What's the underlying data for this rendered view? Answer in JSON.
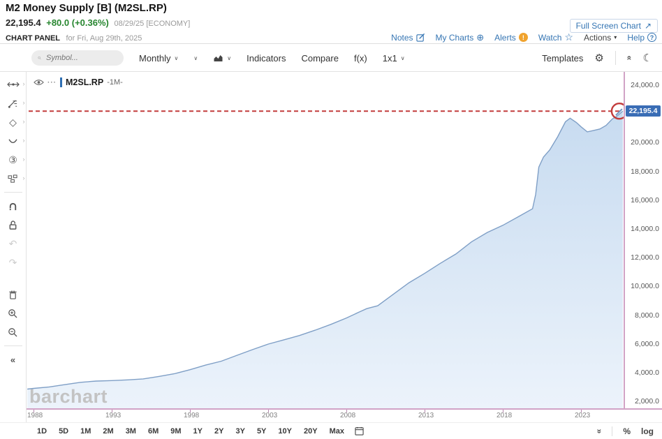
{
  "header": {
    "title": "M2 Money Supply [B] (M2SL.RP)",
    "last": "22,195.4",
    "change": "+80.0 (+0.36%)",
    "date_info": "08/29/25 [ECONOMY]",
    "fullscreen_label": "Full Screen Chart",
    "panel_label": "CHART PANEL",
    "panel_date": "for Fri, Aug 29th, 2025",
    "links": {
      "notes": "Notes",
      "my_charts": "My Charts",
      "alerts": "Alerts",
      "watch": "Watch",
      "actions": "Actions",
      "help": "Help"
    }
  },
  "toolbar": {
    "symbol_placeholder": "Symbol...",
    "period": "Monthly",
    "indicators": "Indicators",
    "compare": "Compare",
    "fx": "f(x)",
    "grid_layout": "1x1",
    "templates": "Templates"
  },
  "sidebar": {
    "tools": [
      "crosshair",
      "draw-annotations",
      "shapes",
      "curves",
      "waves",
      "patterns",
      "magnet",
      "lock",
      "undo",
      "redo",
      "delete",
      "zoom-in",
      "zoom-out",
      "collapse"
    ]
  },
  "legend": {
    "symbol": "M2SL.RP",
    "period": "-1M-"
  },
  "watermark": "barchart",
  "price_tag": "22,195.4",
  "bottom_bar": {
    "ranges": [
      "1D",
      "5D",
      "1M",
      "2M",
      "3M",
      "6M",
      "9M",
      "1Y",
      "2Y",
      "3Y",
      "5Y",
      "10Y",
      "20Y",
      "Max"
    ],
    "percent": "%",
    "log": "log"
  },
  "icons": {
    "caret_down": "∨",
    "menu_caret": "▾",
    "gear": "⚙",
    "collapse_up": "«",
    "moon": "☾",
    "my_charts": "⊕",
    "watch_star": "☆",
    "help": "?",
    "alerts": "!",
    "fullscreen": "↗",
    "legend_dots": "···",
    "diamond": "◇",
    "circled_three": "③",
    "tool_chevron": "›",
    "undo": "↶",
    "redo": "↷",
    "sidebar_collapse": "«",
    "chevron_double_down": "»"
  },
  "colors": {
    "accent_blue": "#3575b3",
    "positive_green": "#27862f",
    "annotation_red": "#c23b3b",
    "price_tag_blue": "#3a6db5",
    "axis_pink": "#d1a3c6",
    "line_blue": "#7f9fc6",
    "fill_blue": "#d9e7f6"
  },
  "chart_data": {
    "type": "area",
    "title": "M2 Money Supply [B] (M2SL.RP)",
    "xlabel": "",
    "ylabel": "",
    "grid": false,
    "legend_position": "top-left",
    "series": [
      {
        "name": "M2SL.RP",
        "x": [
          1987.6,
          1988,
          1989,
          1990,
          1991,
          1992,
          1993,
          1994,
          1995,
          1996,
          1997,
          1998,
          1999,
          2000,
          2001,
          2002,
          2003,
          2004,
          2005,
          2006,
          2007,
          2008,
          2008.8,
          2009.3,
          2010,
          2011,
          2012,
          2013,
          2014,
          2015,
          2016,
          2017,
          2018,
          2019,
          2019.9,
          2020.1,
          2020.3,
          2020.6,
          2021,
          2021.5,
          2022,
          2022.3,
          2022.7,
          2023,
          2023.4,
          2023.8,
          2024.2,
          2024.6,
          2025,
          2025.3,
          2025.67
        ],
        "values": [
          2850,
          2900,
          3000,
          3160,
          3320,
          3410,
          3440,
          3490,
          3560,
          3730,
          3920,
          4200,
          4520,
          4790,
          5200,
          5600,
          5980,
          6280,
          6580,
          6950,
          7350,
          7800,
          8200,
          8450,
          8650,
          9450,
          10250,
          10900,
          11600,
          12250,
          13100,
          13750,
          14250,
          14850,
          15400,
          16400,
          18300,
          19000,
          19500,
          20400,
          21450,
          21700,
          21400,
          21100,
          20750,
          20850,
          20950,
          21200,
          21650,
          21850,
          22195.4
        ]
      }
    ],
    "x_ticks": [
      "1988",
      "1993",
      "1998",
      "2003",
      "2008",
      "2013",
      "2018",
      "2023"
    ],
    "y_ticks": [
      "24,000.0",
      "20,000.0",
      "18,000.0",
      "16,000.0",
      "14,000.0",
      "12,000.0",
      "10,000.0",
      "8,000.0",
      "6,000.0",
      "4,000.0",
      "2,000.0"
    ],
    "xlim": [
      1987.55,
      2025.72
    ],
    "ylim": [
      1514,
      24923
    ],
    "last_value": 22195.4,
    "annotation": {
      "type": "hline-circle",
      "value": 22195.4
    }
  }
}
